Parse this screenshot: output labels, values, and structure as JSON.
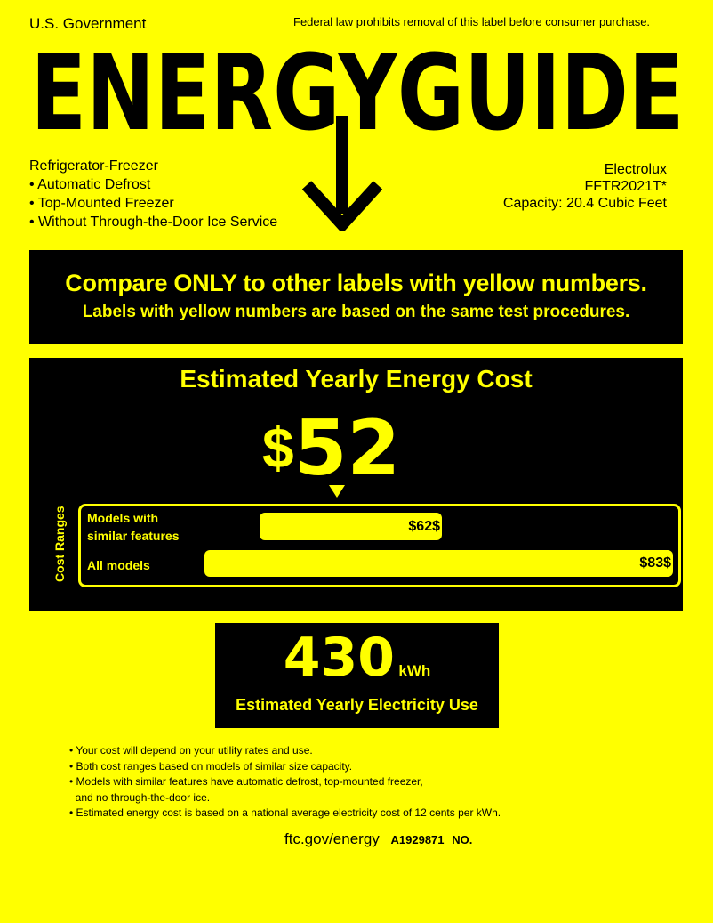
{
  "header": {
    "government": "U.S. Government",
    "federal_notice": "Federal law prohibits removal of this label before consumer purchase.",
    "logo_text": "ENERGYGUIDE"
  },
  "product": {
    "type": "Refrigerator-Freezer",
    "features": [
      "• Automatic Defrost",
      "• Top-Mounted Freezer",
      "• Without Through-the-Door Ice Service"
    ],
    "brand": "Electrolux",
    "model": "FFTR2021T*",
    "capacity": "Capacity: 20.4 Cubic Feet"
  },
  "compare": {
    "line1": "Compare ONLY to other labels with yellow numbers.",
    "line2": "Labels with yellow numbers are based on the same test procedures."
  },
  "cost": {
    "title": "Estimated Yearly Energy Cost",
    "currency": "$",
    "value": "52",
    "ranges_label": "Cost Ranges",
    "similar": {
      "label_line1": "Models with",
      "label_line2": "similar features",
      "high": "$62",
      "high_tail": "$"
    },
    "all": {
      "label": "All models",
      "high": "$83",
      "high_tail": "$"
    }
  },
  "electricity": {
    "value": "430",
    "unit": "kWh",
    "label": "Estimated Yearly Electricity Use"
  },
  "notes": [
    "• Your cost will depend on your utility rates and use.",
    "• Both cost ranges based on models of similar size capacity.",
    "• Models with similar features have automatic defrost, top-mounted freezer,",
    "  and no through-the-door ice.",
    "• Estimated energy cost is based on a national average electricity cost of 12 cents per kWh."
  ],
  "footer": {
    "url": "ftc.gov/energy",
    "code_a": "A1929871",
    "code_b": "NO."
  },
  "colors": {
    "label_yellow": "#ffff00",
    "box_black": "#000000"
  }
}
